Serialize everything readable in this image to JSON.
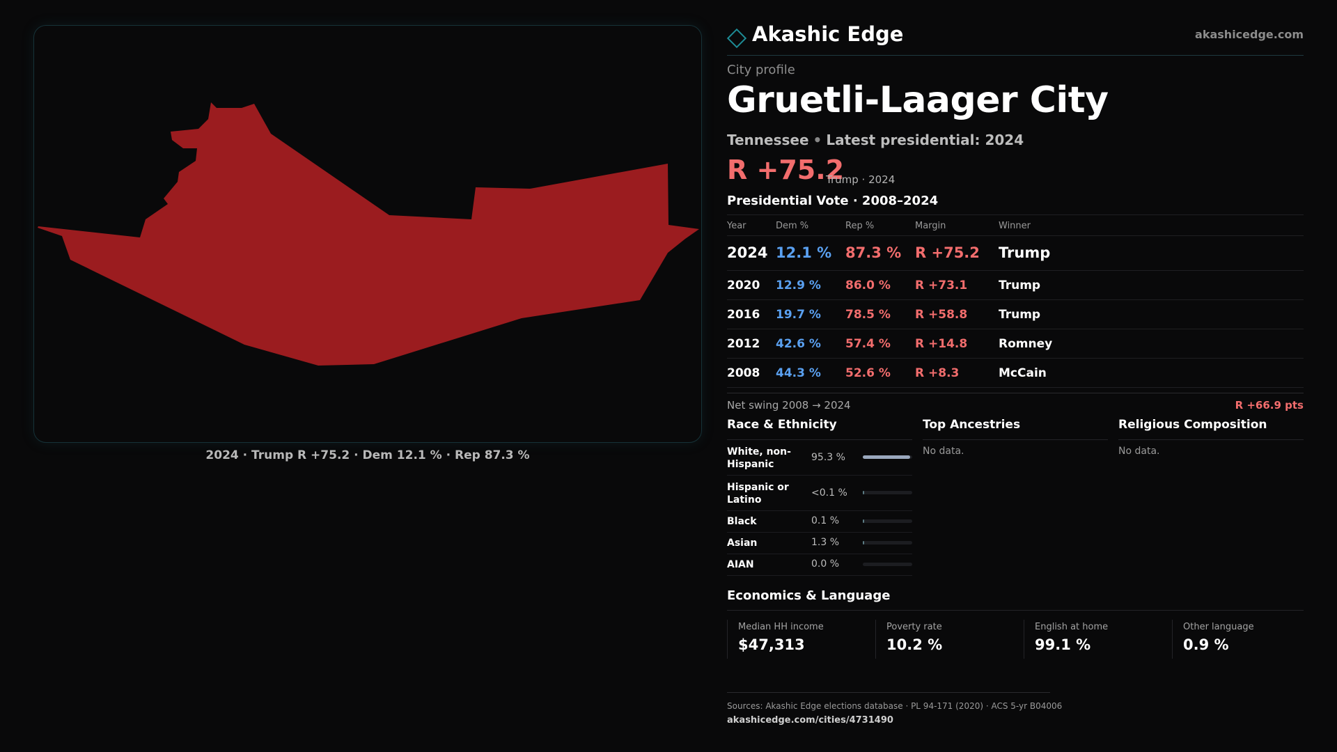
{
  "map": {
    "fill_color": "#9b1c1f",
    "caption": "2024 · Trump R +75.2 · Dem 12.1 % · Rep 87.3 %"
  },
  "brand": {
    "name": "Akashic Edge",
    "url": "akashicedge.com",
    "accent": "#1e8c96"
  },
  "profile": {
    "kicker": "City profile",
    "city": "Gruetli-Laager City",
    "state": "Tennessee",
    "latest": "Latest presidential: 2024",
    "margin": "R +75.2",
    "margin_sub": "Trump · 2024"
  },
  "vote": {
    "title": "Presidential Vote · 2008–2024",
    "headers": {
      "year": "Year",
      "dem": "Dem %",
      "rep": "Rep %",
      "margin": "Margin",
      "winner": "Winner"
    },
    "rows": [
      {
        "year": "2024",
        "dem": "12.1 %",
        "rep": "87.3 %",
        "margin": "R +75.2",
        "winner": "Trump"
      },
      {
        "year": "2020",
        "dem": "12.9 %",
        "rep": "86.0 %",
        "margin": "R +73.1",
        "winner": "Trump"
      },
      {
        "year": "2016",
        "dem": "19.7 %",
        "rep": "78.5 %",
        "margin": "R +58.8",
        "winner": "Trump"
      },
      {
        "year": "2012",
        "dem": "42.6 %",
        "rep": "57.4 %",
        "margin": "R +14.8",
        "winner": "Romney"
      },
      {
        "year": "2008",
        "dem": "44.3 %",
        "rep": "52.6 %",
        "margin": "R +8.3",
        "winner": "McCain"
      }
    ],
    "swing_label": "Net swing 2008 → 2024",
    "swing_value": "R +66.9 pts"
  },
  "colors": {
    "dem": "#5aa0f0",
    "rep": "#f26d6d"
  },
  "race": {
    "title": "Race & Ethnicity",
    "rows": [
      {
        "label": "White, non-Hispanic",
        "value": "95.3 %",
        "share": 95.3
      },
      {
        "label": "Hispanic or Latino",
        "value": "<0.1 %",
        "share": 0.05
      },
      {
        "label": "Black",
        "value": "0.1 %",
        "share": 0.1
      },
      {
        "label": "Asian",
        "value": "1.3 %",
        "share": 1.3
      },
      {
        "label": "AIAN",
        "value": "0.0 %",
        "share": 0.0
      }
    ]
  },
  "ancestries": {
    "title": "Top Ancestries",
    "empty": "No data."
  },
  "religion": {
    "title": "Religious Composition",
    "empty": "No data."
  },
  "economics": {
    "title": "Economics & Language",
    "cells": [
      {
        "label": "Median HH income",
        "value": "$47,313"
      },
      {
        "label": "Poverty rate",
        "value": "10.2 %"
      },
      {
        "label": "English at home",
        "value": "99.1 %"
      },
      {
        "label": "Other language",
        "value": "0.9 %"
      }
    ]
  },
  "footer": {
    "sources": "Sources: Akashic Edge elections database · PL 94-171 (2020) · ACS 5-yr B04006",
    "url": "akashicedge.com/cities/4731490"
  }
}
